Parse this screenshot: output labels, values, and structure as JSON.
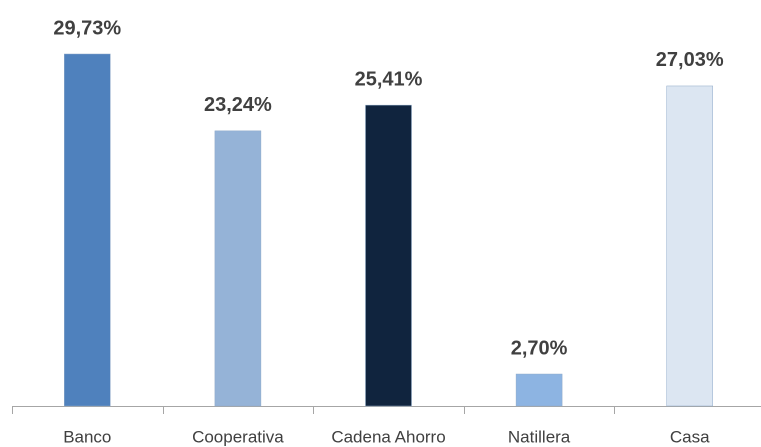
{
  "chart_data": {
    "type": "bar",
    "categories": [
      "Banco",
      "Cooperativa",
      "Cadena Ahorro",
      "Natillera",
      "Casa"
    ],
    "values": [
      29.73,
      23.24,
      25.41,
      2.7,
      27.03
    ],
    "value_labels": [
      "29,73%",
      "23,24%",
      "25,41%",
      "2,70%",
      "27,03%"
    ],
    "colors": [
      "#4f81bd",
      "#95b3d7",
      "#10243e",
      "#8db4e2",
      "#dce6f2"
    ]
  }
}
